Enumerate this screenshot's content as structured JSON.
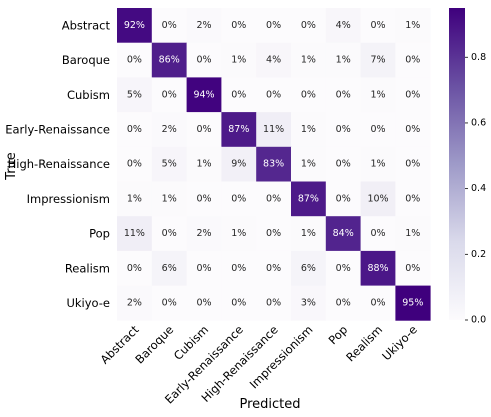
{
  "chart_data": {
    "type": "heatmap",
    "title": "",
    "xlabel": "Predicted",
    "ylabel": "True",
    "labels": [
      "Abstract",
      "Baroque",
      "Cubism",
      "Early-Renaissance",
      "High-Renaissance",
      "Impressionism",
      "Pop",
      "Realism",
      "Ukiyo-e"
    ],
    "values": [
      [
        92,
        0,
        2,
        0,
        0,
        0,
        4,
        0,
        1
      ],
      [
        0,
        86,
        0,
        1,
        4,
        1,
        1,
        7,
        0
      ],
      [
        5,
        0,
        94,
        0,
        0,
        0,
        0,
        1,
        0
      ],
      [
        0,
        2,
        0,
        87,
        11,
        1,
        0,
        0,
        0
      ],
      [
        0,
        5,
        1,
        9,
        83,
        1,
        0,
        1,
        0
      ],
      [
        1,
        1,
        0,
        0,
        0,
        87,
        0,
        10,
        0
      ],
      [
        11,
        0,
        2,
        1,
        0,
        1,
        84,
        0,
        1
      ],
      [
        0,
        6,
        0,
        0,
        0,
        6,
        0,
        88,
        0
      ],
      [
        2,
        0,
        0,
        0,
        0,
        3,
        0,
        0,
        95
      ]
    ],
    "value_suffix": "%",
    "colorbar": {
      "range": [
        0,
        0.95
      ],
      "ticks": [
        "0.0",
        "0.2",
        "0.4",
        "0.6",
        "0.8"
      ],
      "colormap": "Purples",
      "color_low": "#fcfbfd",
      "color_high": "#3f007d"
    }
  }
}
